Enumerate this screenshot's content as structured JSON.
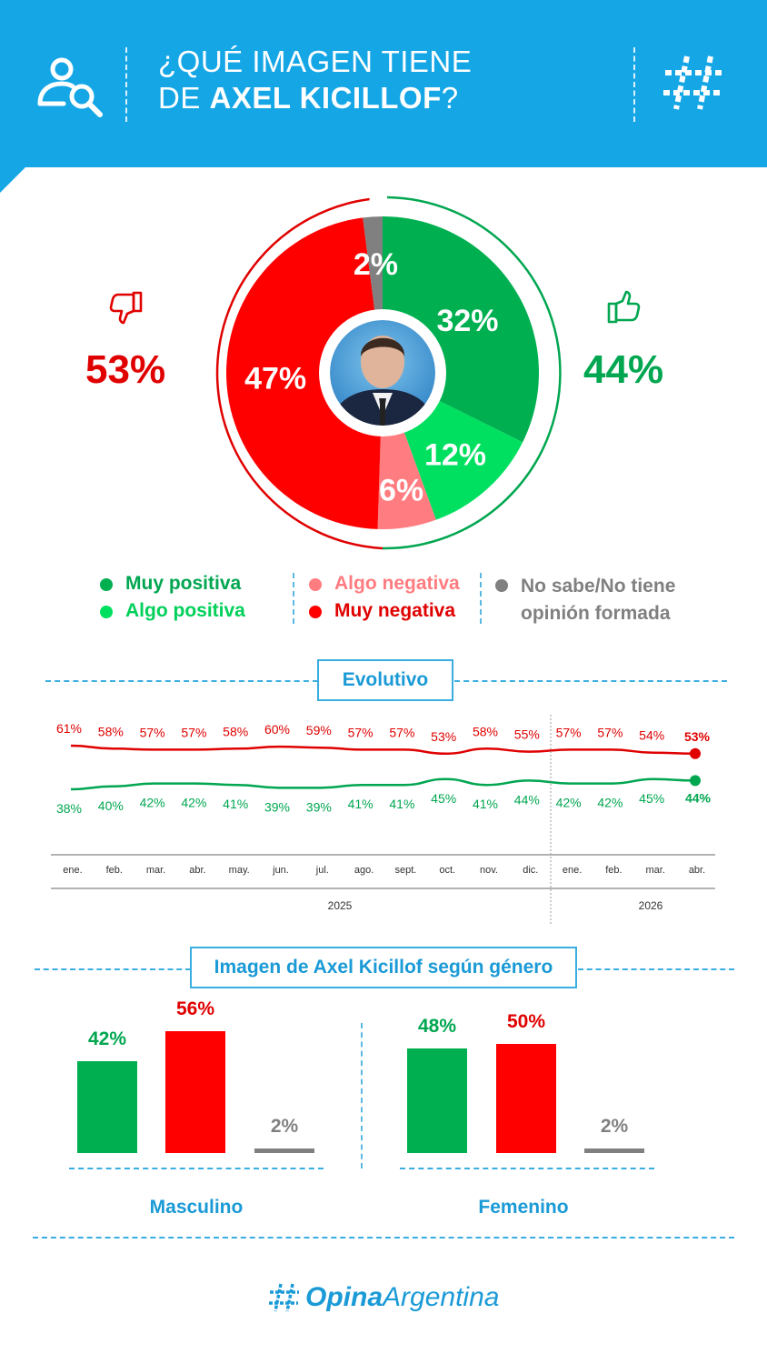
{
  "header": {
    "title_line1": "¿QUÉ IMAGEN TIENE",
    "title_line2_prefix": "DE ",
    "title_line2_bold": "AXEL KICILLOF",
    "title_line2_suffix": "?",
    "left_icon": "user-search-icon",
    "right_icon": "hashtag-icon"
  },
  "colors": {
    "header": "#15a6e6",
    "muy_positiva": "#00b050",
    "algo_positiva": "#00e060",
    "algo_negativa": "#ff7c80",
    "muy_negativa": "#ff0000",
    "no_sabe": "#808080",
    "accent_blue": "#1a9ad6"
  },
  "summary": {
    "negative_total": "53%",
    "positive_total": "44%",
    "negative_icon": "thumbs-down-icon",
    "positive_icon": "thumbs-up-icon"
  },
  "legend": {
    "muy_positiva": "Muy positiva",
    "algo_positiva": "Algo positiva",
    "algo_negativa": "Algo negativa",
    "muy_negativa": "Muy negativa",
    "no_sabe_line1": "No sabe/No tiene",
    "no_sabe_line2": "opinión formada"
  },
  "sections": {
    "evolutivo": "Evolutivo",
    "genero": "Imagen de Axel Kicillof según género"
  },
  "brand": {
    "name_bold": "Opina",
    "name_regular": "Argentina"
  },
  "chart_data": [
    {
      "type": "pie",
      "labels": [
        "Muy positiva",
        "Algo positiva",
        "Algo negativa",
        "Muy negativa",
        "No sabe/No tiene opinión formada"
      ],
      "values": [
        32,
        12,
        6,
        47,
        2
      ],
      "value_labels": [
        "32%",
        "12%",
        "6%",
        "47%",
        "2%"
      ],
      "colors": [
        "#00b050",
        "#00e060",
        "#ff7c80",
        "#ff0000",
        "#808080"
      ]
    },
    {
      "type": "line",
      "title": "Evolutivo",
      "categories": [
        "ene.",
        "feb.",
        "mar.",
        "abr.",
        "may.",
        "jun.",
        "jul.",
        "ago.",
        "sept.",
        "oct.",
        "nov.",
        "dic.",
        "ene.",
        "feb.",
        "mar.",
        "abr."
      ],
      "year_labels": [
        "2025",
        "2026"
      ],
      "series": [
        {
          "values": [
            61,
            58,
            57,
            57,
            58,
            60,
            59,
            57,
            57,
            53,
            58,
            55,
            57,
            57,
            54,
            53
          ],
          "color": "#e00000"
        },
        {
          "values": [
            38,
            40,
            42,
            42,
            41,
            39,
            39,
            41,
            41,
            45,
            41,
            44,
            42,
            42,
            45,
            44
          ],
          "color": "#00a650"
        }
      ],
      "ylim": [
        30,
        70
      ]
    },
    {
      "type": "bar",
      "title": "Imagen de Axel Kicillof según género",
      "groups": [
        {
          "name": "Masculino",
          "values": [
            42,
            56,
            2
          ],
          "labels": [
            "42%",
            "56%",
            "2%"
          ]
        },
        {
          "name": "Femenino",
          "values": [
            48,
            50,
            2
          ],
          "labels": [
            "48%",
            "50%",
            "2%"
          ]
        }
      ],
      "colors": [
        "#00b050",
        "#ff0000",
        "#808080"
      ]
    }
  ]
}
